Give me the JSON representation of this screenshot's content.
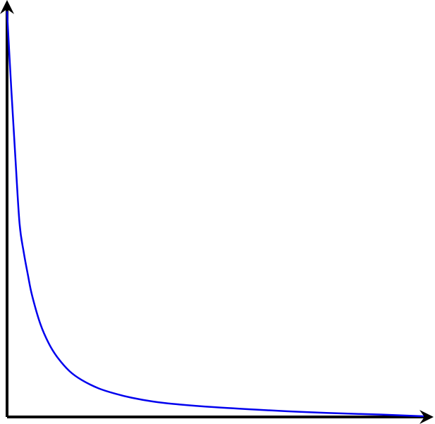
{
  "chart_data": {
    "type": "line",
    "title": "",
    "xlabel": "",
    "ylabel": "",
    "grid": false,
    "legend": "none",
    "xlim": [
      0,
      1
    ],
    "ylim": [
      0,
      1
    ],
    "series": [
      {
        "color": "#0000ee",
        "x": [
          0.0,
          0.01,
          0.02,
          0.03,
          0.04,
          0.05,
          0.06,
          0.08,
          0.1,
          0.12,
          0.15,
          0.18,
          0.22,
          0.26,
          0.3,
          0.35,
          0.4,
          0.5,
          0.6,
          0.7,
          0.8,
          0.9,
          1.0
        ],
        "values": [
          0.985,
          0.8,
          0.63,
          0.47,
          0.4,
          0.345,
          0.295,
          0.225,
          0.178,
          0.145,
          0.11,
          0.088,
          0.068,
          0.055,
          0.045,
          0.036,
          0.03,
          0.022,
          0.016,
          0.011,
          0.007,
          0.004,
          0.0
        ]
      }
    ],
    "axis_color": "#000000"
  }
}
